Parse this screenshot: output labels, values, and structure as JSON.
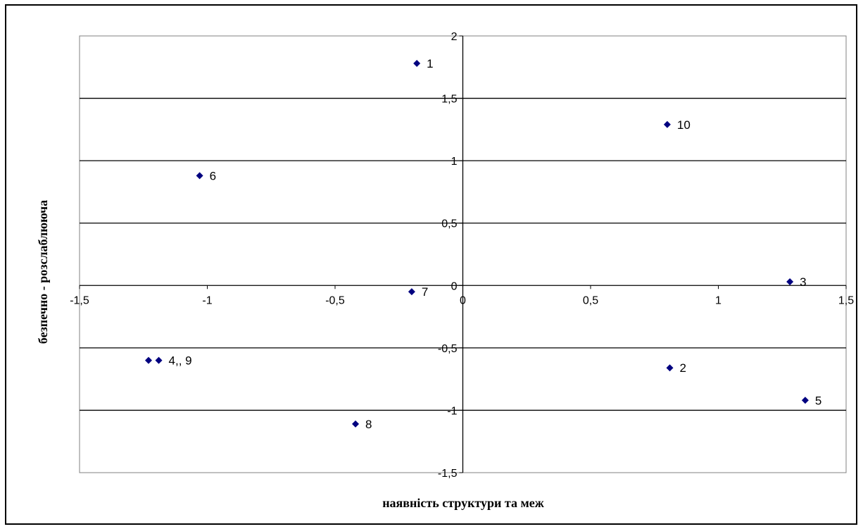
{
  "chart_data": {
    "type": "scatter",
    "title": "",
    "xlabel": "наявність структури  та  меж",
    "ylabel": "безпечно - розслаблююча",
    "xlim": [
      -1.5,
      1.5
    ],
    "ylim": [
      -1.5,
      2
    ],
    "xticks": [
      -1.5,
      -1,
      -0.5,
      0,
      0.5,
      1,
      1.5
    ],
    "xtick_labels": [
      "-1,5",
      "-1",
      "-0,5",
      "0",
      "0,5",
      "1",
      "1,5"
    ],
    "yticks": [
      -1.5,
      -1,
      -0.5,
      0,
      0.5,
      1,
      1.5,
      2
    ],
    "ytick_labels": [
      "-1,5",
      "-1",
      "-0,5",
      "0",
      "0,5",
      "1",
      "1,5",
      "2"
    ],
    "grid": "horizontal",
    "marker": "diamond",
    "marker_color": "#000080",
    "points": [
      {
        "label": "1",
        "x": -0.18,
        "y": 1.78
      },
      {
        "label": "2",
        "x": 0.81,
        "y": -0.66
      },
      {
        "label": "3",
        "x": 1.28,
        "y": 0.03
      },
      {
        "label": "5",
        "x": 1.34,
        "y": -0.92
      },
      {
        "label": "6",
        "x": -1.03,
        "y": 0.88
      },
      {
        "label": "7",
        "x": -0.2,
        "y": -0.05
      },
      {
        "label": "8",
        "x": -0.42,
        "y": -1.11
      },
      {
        "label": "10",
        "x": 0.8,
        "y": 1.29
      },
      {
        "label": "",
        "x": -1.23,
        "y": -0.6
      },
      {
        "label": "4,, 9",
        "x": -1.19,
        "y": -0.6
      }
    ]
  }
}
